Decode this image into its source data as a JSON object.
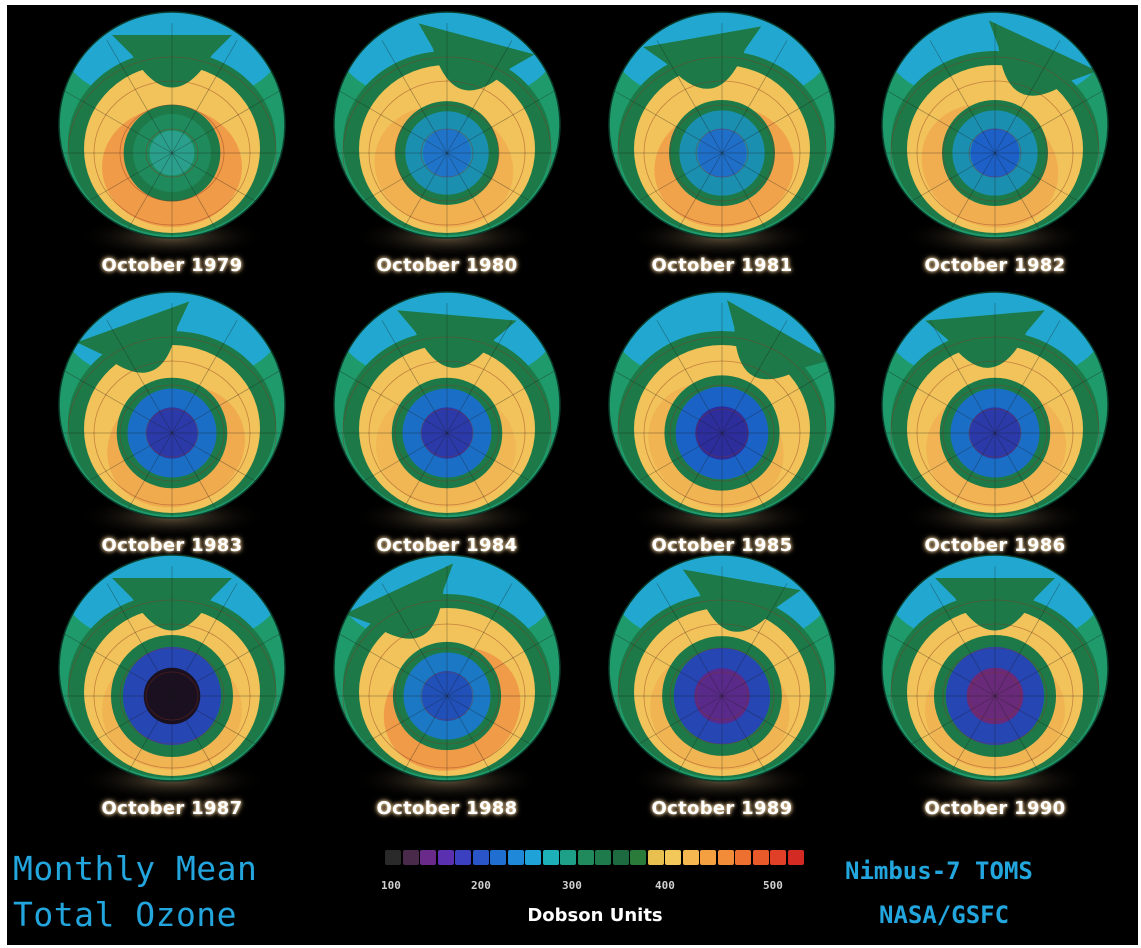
{
  "panels": [
    {
      "label": "October 1979",
      "hole": 0.3,
      "inner": "#1f8a5c",
      "core": "#2aa08c",
      "hot": 1.0,
      "rot": 0
    },
    {
      "label": "October 1980",
      "hole": 0.36,
      "inner": "#1b8fb0",
      "core": "#1f74c9",
      "hot": 0.45,
      "rot": 15
    },
    {
      "label": "October 1981",
      "hole": 0.38,
      "inner": "#1b8fb0",
      "core": "#1f6fc9",
      "hot": 0.8,
      "rot": -10
    },
    {
      "label": "October 1982",
      "hole": 0.38,
      "inner": "#1b8fb0",
      "core": "#1c60c8",
      "hot": 0.5,
      "rot": 25
    },
    {
      "label": "October 1983",
      "hole": 0.42,
      "inner": "#1b6ec6",
      "core": "#2b3aa8",
      "hot": 0.6,
      "rot": -20
    },
    {
      "label": "October 1984",
      "hole": 0.42,
      "inner": "#1b6ec6",
      "core": "#2b3aa8",
      "hot": 0.3,
      "rot": 5
    },
    {
      "label": "October 1985",
      "hole": 0.46,
      "inner": "#1b62c6",
      "core": "#2d2d9c",
      "hot": 0.35,
      "rot": 30
    },
    {
      "label": "October 1986",
      "hole": 0.42,
      "inner": "#1b6ec6",
      "core": "#2b3aa8",
      "hot": 0.4,
      "rot": -5
    },
    {
      "label": "October 1987",
      "hole": 0.52,
      "inner": "#2546b3",
      "core": "#1a1020",
      "hot": 0.35,
      "rot": 0
    },
    {
      "label": "October 1988",
      "hole": 0.4,
      "inner": "#1b78c4",
      "core": "#2050b8",
      "hot": 1.0,
      "rot": -25
    },
    {
      "label": "October 1989",
      "hole": 0.5,
      "inner": "#2546b3",
      "core": "#5a2a8a",
      "hot": 0.35,
      "rot": 10
    },
    {
      "label": "October 1990",
      "hole": 0.52,
      "inner": "#2546b3",
      "core": "#6a2a7a",
      "hot": 0.35,
      "rot": 0
    }
  ],
  "footer": {
    "left_line1": "Monthly Mean",
    "left_line2": "Total Ozone",
    "right_line1": "Nimbus-7 TOMS",
    "right_line2": "NASA/GSFC",
    "units_label": "Dobson Units",
    "ticks": [
      "100",
      "200",
      "300",
      "400",
      "500"
    ]
  },
  "colorbar": [
    "#2a2a2a",
    "#4a2a4a",
    "#6a2a8a",
    "#5a30b0",
    "#3a40c0",
    "#2a55c8",
    "#1f6ed0",
    "#1f88d8",
    "#1ea2d8",
    "#1eb0b8",
    "#1ea088",
    "#208a5c",
    "#1e7a4a",
    "#1e6a40",
    "#2a7a3a",
    "#e8c050",
    "#f2c85a",
    "#f5b850",
    "#f5a040",
    "#f28c38",
    "#ee7030",
    "#e85a2a",
    "#e04028",
    "#d42a24"
  ]
}
